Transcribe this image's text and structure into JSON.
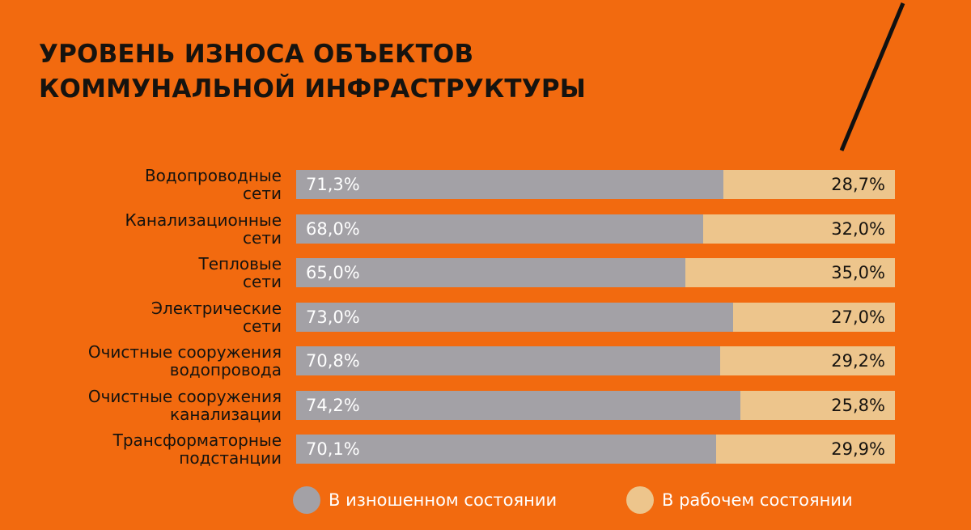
{
  "title_lines": [
    "УРОВЕНЬ ИЗНОСА ОБЪЕКТОВ",
    "КОММУНАЛЬНОЙ ИНФРАСТРУКТУРЫ"
  ],
  "colors": {
    "background": "#f26a0f",
    "worn": "#a3a1a6",
    "working": "#edc58c",
    "text_dark": "#16130f"
  },
  "chart_data": {
    "type": "bar",
    "stacked": true,
    "orientation": "horizontal",
    "title": "УРОВЕНЬ ИЗНОСА ОБЪЕКТОВ КОММУНАЛЬНОЙ ИНФРАСТРУКТУРЫ",
    "categories": [
      [
        "Водопроводные",
        "сети"
      ],
      [
        "Канализационные",
        "сети"
      ],
      [
        "Тепловые",
        "сети"
      ],
      [
        "Электрические",
        "сети"
      ],
      [
        "Очистные сооружения",
        "водопровода"
      ],
      [
        "Очистные сооружения",
        "канализации"
      ],
      [
        "Трансформаторные",
        "подстанции"
      ]
    ],
    "series": [
      {
        "name": "В изношенном состоянии",
        "values": [
          71.3,
          68.0,
          65.0,
          73.0,
          70.8,
          74.2,
          70.1
        ],
        "labels": [
          "71,3%",
          "68,0%",
          "65,0%",
          "73,0%",
          "70,8%",
          "74,2%",
          "70,1%"
        ]
      },
      {
        "name": "В рабочем состоянии",
        "values": [
          28.7,
          32.0,
          35.0,
          27.0,
          29.2,
          25.8,
          29.9
        ],
        "labels": [
          "28,7%",
          "32,0%",
          "35,0%",
          "27,0%",
          "29,2%",
          "25,8%",
          "29,9%"
        ]
      }
    ],
    "xlim": [
      0,
      100
    ],
    "grid": false,
    "legend_position": "bottom-right"
  }
}
